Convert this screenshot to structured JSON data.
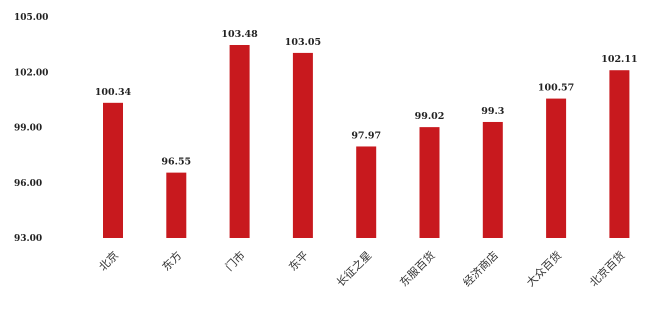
{
  "chart_data": {
    "type": "bar",
    "title": "",
    "xlabel": "",
    "ylabel": "",
    "ylim": [
      93,
      105
    ],
    "yticks": [
      "105.00",
      "102.00",
      "99.00",
      "96.00",
      "93.00"
    ],
    "categories": [
      "北京",
      "东方",
      "门市",
      "东平",
      "长征之星",
      "东服百货",
      "经济商店",
      "大众百货",
      "北京百货"
    ],
    "values": [
      100.34,
      96.55,
      103.48,
      103.05,
      97.97,
      99.02,
      99.3,
      100.57,
      102.11
    ],
    "value_labels": [
      "100.34",
      "96.55",
      "103.48",
      "103.05",
      "97.97",
      "99.02",
      "99.3",
      "100.57",
      "102.11"
    ],
    "bar_color": "#c8191e",
    "grid": false,
    "legend": "none"
  }
}
